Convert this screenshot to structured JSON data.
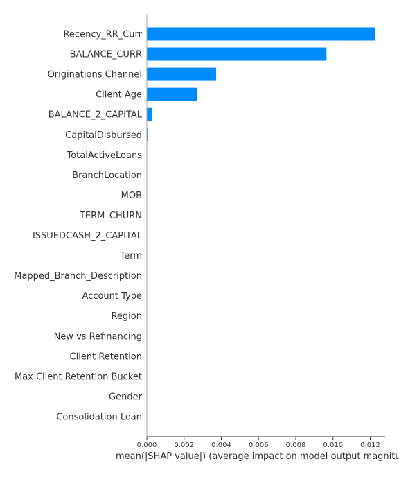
{
  "chart_data": {
    "type": "bar",
    "orientation": "horizontal",
    "title": "",
    "xlabel": "mean(|SHAP value|) (average impact on model output magnitude)",
    "ylabel": "",
    "categories": [
      "Recency_RR_Curr",
      "BALANCE_CURR",
      "Originations Channel",
      "Client Age",
      "BALANCE_2_CAPITAL",
      "CapitalDisbursed",
      "TotalActiveLoans",
      "BranchLocation",
      "MOB",
      "TERM_CHURN",
      "ISSUEDCASH_2_CAPITAL",
      "Term",
      "Mapped_Branch_Description",
      "Account Type",
      "Region",
      "New vs Refinancing",
      "Client Retention",
      "Max Client Retention Bucket",
      "Gender",
      "Consolidation Loan"
    ],
    "values": [
      0.01225,
      0.00965,
      0.00372,
      0.00268,
      0.0003,
      5e-05,
      0.0,
      0.0,
      0.0,
      0.0,
      0.0,
      0.0,
      0.0,
      0.0,
      0.0,
      0.0,
      0.0,
      0.0,
      0.0,
      0.0
    ],
    "xlim": [
      0,
      0.0128
    ],
    "xticks": [
      "0.000",
      "0.002",
      "0.004",
      "0.006",
      "0.008",
      "0.010",
      "0.012"
    ],
    "xtick_values": [
      0,
      0.002,
      0.004,
      0.006,
      0.008,
      0.01,
      0.012
    ],
    "bar_color": "#008bfb",
    "grid": false
  }
}
